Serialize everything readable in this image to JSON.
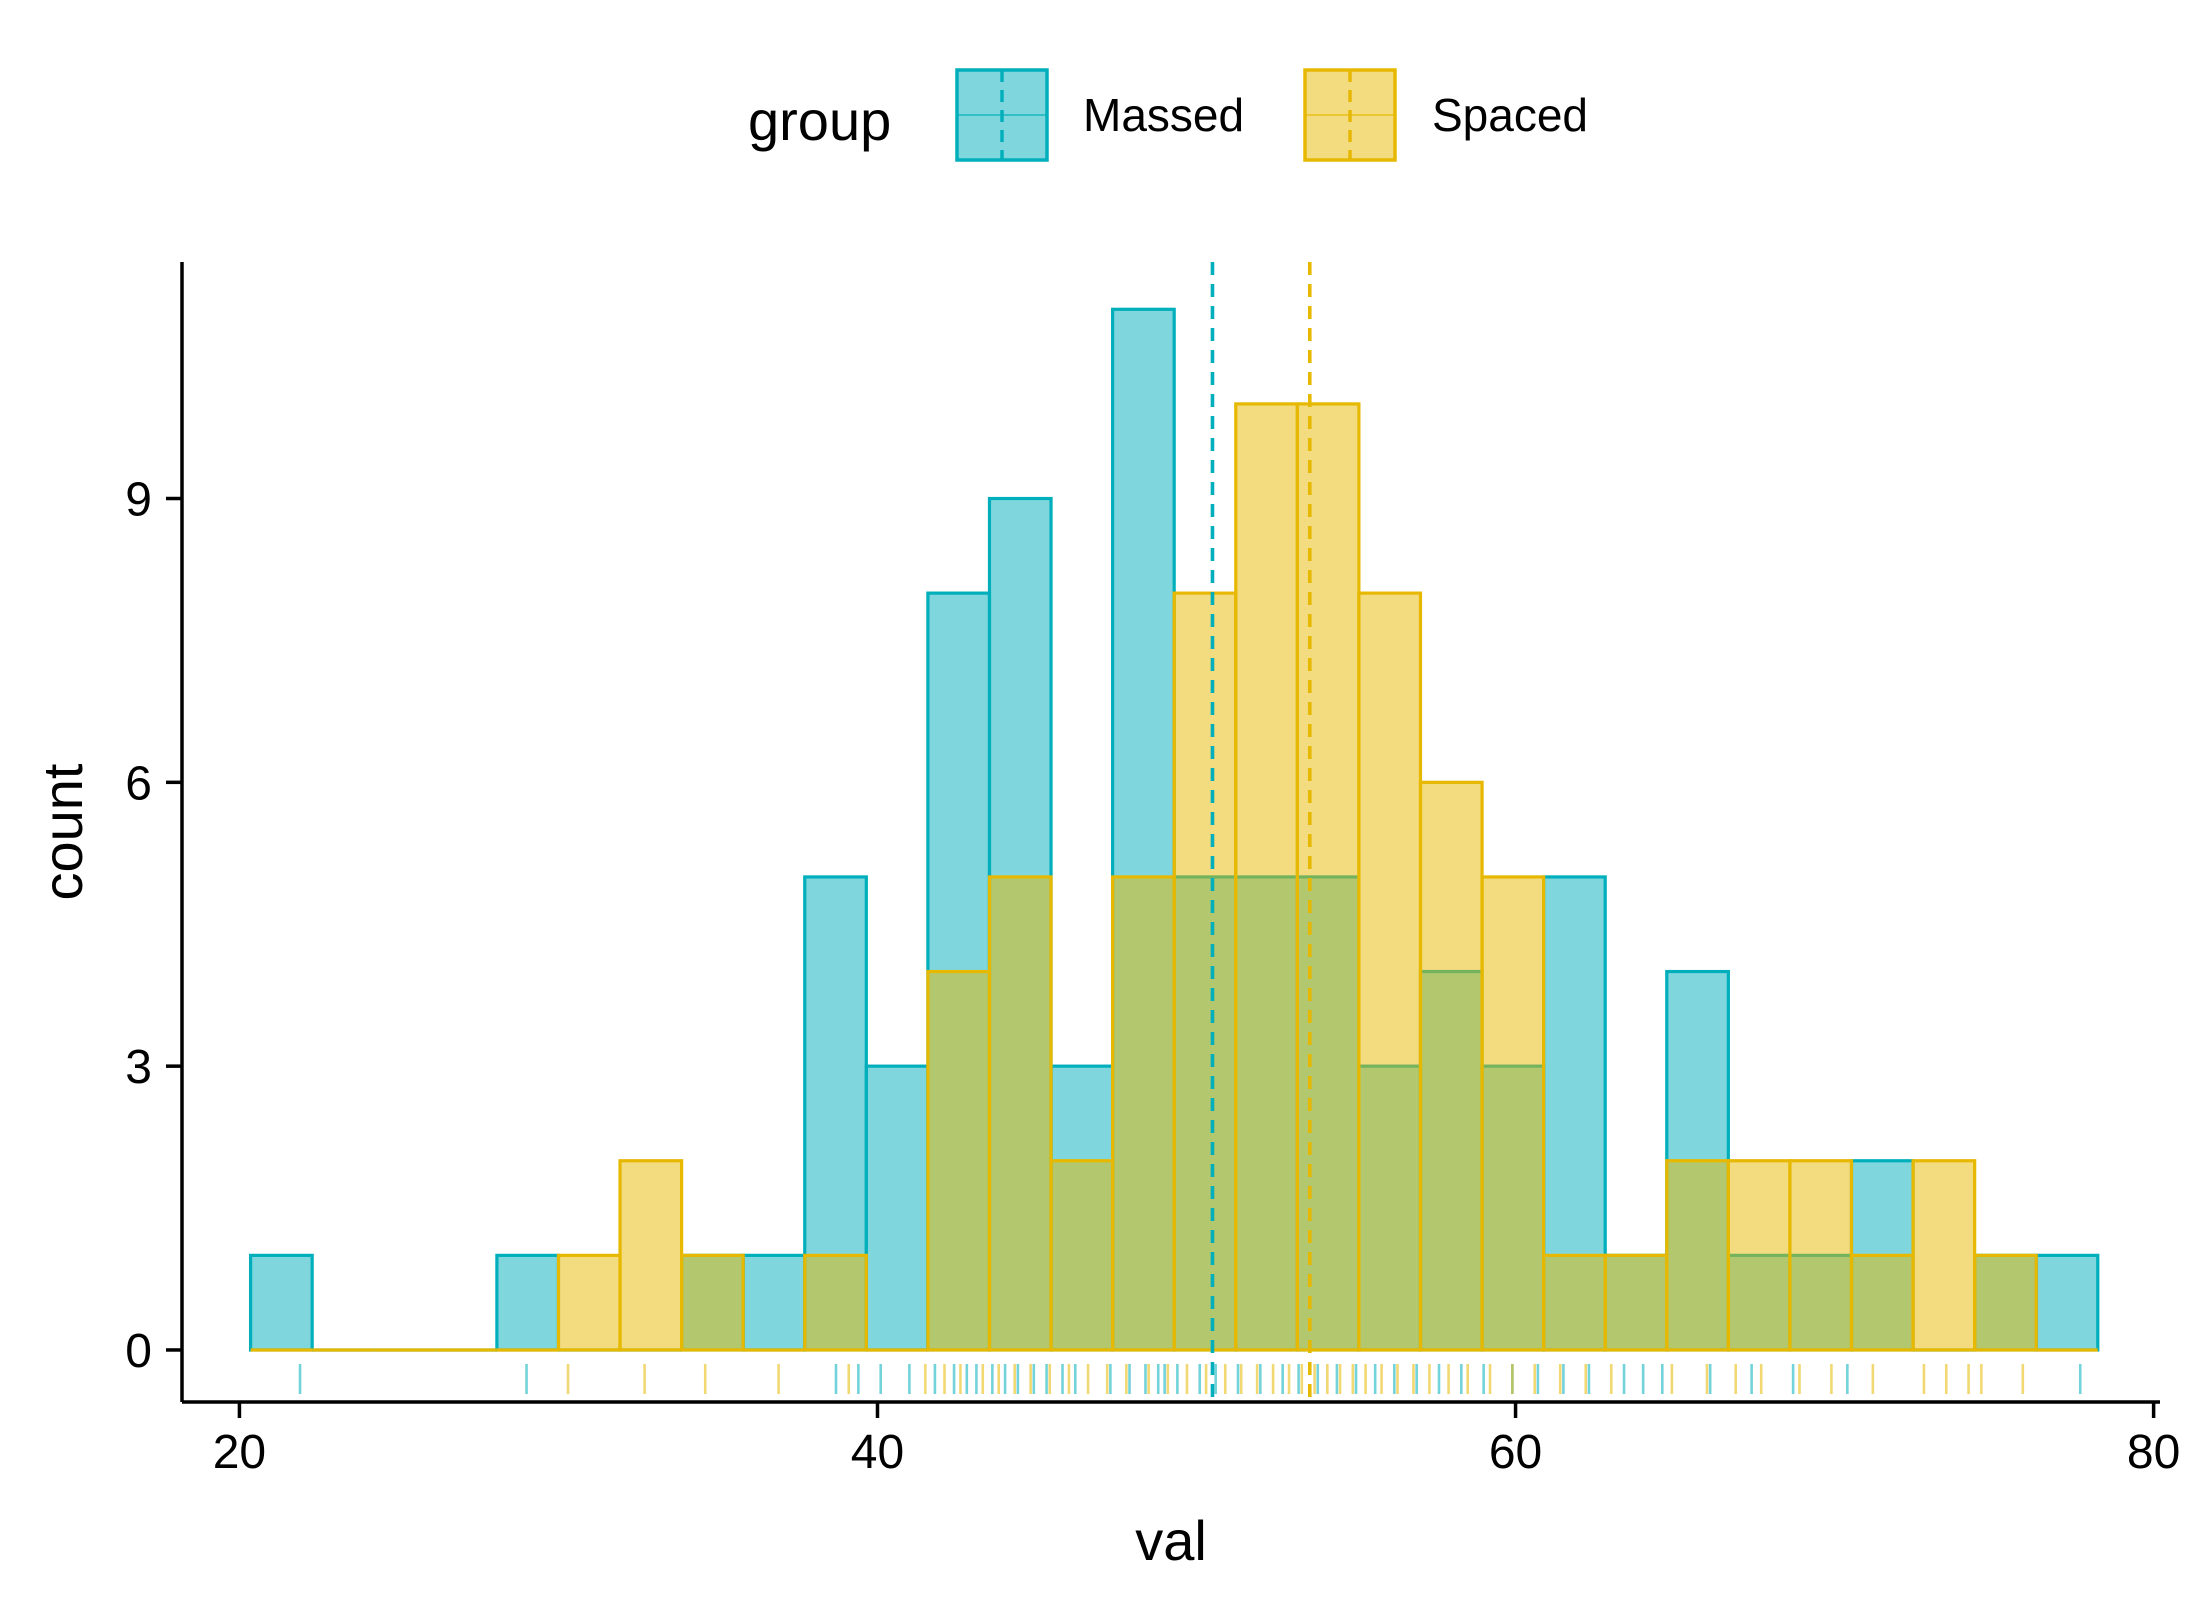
{
  "chart_data": {
    "type": "bar",
    "subtype": "overlaid-histogram",
    "title": "",
    "xlabel": "val",
    "ylabel": "count",
    "xlim": [
      18.2,
      80.2
    ],
    "ylim": [
      -0.55,
      11.5
    ],
    "x_ticks": [
      20,
      40,
      60,
      80
    ],
    "y_ticks": [
      0,
      3,
      6,
      9
    ],
    "grid": false,
    "legend": {
      "title": "group",
      "position": "top"
    },
    "bin_width": 1.93,
    "bin_start": 20.35,
    "series": [
      {
        "name": "Massed",
        "color": "#00AFBB",
        "mean": 50.5,
        "counts": [
          1,
          0,
          0,
          0,
          1,
          0,
          0,
          1,
          1,
          5,
          3,
          8,
          9,
          3,
          11,
          5,
          5,
          5,
          3,
          4,
          3,
          5,
          1,
          4,
          1,
          1,
          2,
          0,
          1,
          1
        ]
      },
      {
        "name": "Spaced",
        "color": "#E7B800",
        "mean": 53.55,
        "counts": [
          0,
          0,
          0,
          0,
          0,
          1,
          2,
          1,
          0,
          1,
          0,
          4,
          5,
          2,
          5,
          8,
          10,
          10,
          8,
          6,
          5,
          1,
          1,
          2,
          2,
          2,
          1,
          2,
          1,
          0
        ]
      }
    ],
    "rug": {
      "Massed": [
        21.9,
        29.0,
        38.7,
        39.4,
        40.1,
        41.0,
        41.8,
        42.4,
        42.8,
        43.1,
        43.6,
        44.0,
        44.4,
        44.9,
        45.3,
        45.8,
        46.2,
        47.3,
        47.9,
        48.4,
        48.8,
        49.0,
        49.4,
        50.1,
        50.6,
        51.3,
        52.0,
        52.7,
        53.2,
        53.8,
        54.4,
        55.0,
        55.6,
        56.2,
        56.9,
        57.6,
        58.3,
        59.0,
        59.9,
        60.7,
        61.5,
        62.3,
        63.4,
        64.0,
        64.6,
        66.1,
        67.4,
        68.7,
        70.4,
        77.7
      ],
      "Spaced": [
        30.3,
        32.7,
        34.6,
        36.9,
        39.1,
        41.5,
        42.1,
        42.6,
        43.3,
        43.8,
        44.3,
        44.8,
        45.4,
        46.0,
        46.6,
        47.2,
        47.8,
        48.5,
        49.1,
        49.7,
        50.3,
        50.9,
        51.4,
        51.9,
        52.4,
        52.9,
        53.3,
        53.7,
        54.1,
        54.5,
        54.9,
        55.3,
        55.8,
        56.3,
        56.8,
        57.3,
        57.9,
        58.5,
        59.2,
        59.9,
        60.6,
        61.4,
        62.2,
        63.0,
        64.9,
        66.0,
        66.9,
        67.7,
        68.9,
        69.9,
        71.2,
        72.8,
        73.5,
        74.2,
        74.6,
        75.9
      ]
    }
  }
}
